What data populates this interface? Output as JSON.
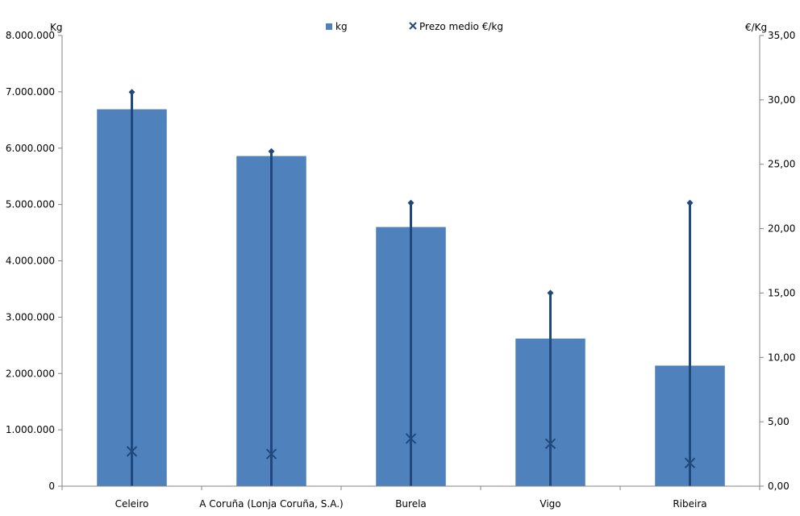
{
  "chart_data": {
    "type": "bar",
    "categories": [
      "Celeiro",
      "A Coruña (Lonja Coruña, S.A.)",
      "Burela",
      "Vigo",
      "Ribeira"
    ],
    "series": [
      {
        "name": "kg",
        "type": "bar",
        "axis": "left",
        "values": [
          6690000,
          5860000,
          4600000,
          2620000,
          2140000
        ]
      },
      {
        "name": "Prezo medio €/kg",
        "type": "marker",
        "axis": "right",
        "marker": "x",
        "values": [
          2.7,
          2.5,
          3.7,
          3.3,
          1.8
        ],
        "high": [
          30.6,
          26.0,
          22.0,
          15.0,
          22.0
        ],
        "low": [
          0,
          0,
          0,
          0,
          0
        ]
      }
    ],
    "y_left": {
      "label": "Kg",
      "lim": [
        0,
        8000000
      ],
      "ticks": [
        0,
        1000000,
        2000000,
        3000000,
        4000000,
        5000000,
        6000000,
        7000000,
        8000000
      ],
      "tick_labels": [
        "0",
        "1.000.000",
        "2.000.000",
        "3.000.000",
        "4.000.000",
        "5.000.000",
        "6.000.000",
        "7.000.000",
        "8.000.000"
      ]
    },
    "y_right": {
      "label": "€/Kg",
      "lim": [
        0,
        35
      ],
      "ticks": [
        0,
        5,
        10,
        15,
        20,
        25,
        30,
        35
      ],
      "tick_labels": [
        "0,00",
        "5,00",
        "10,00",
        "15,00",
        "20,00",
        "25,00",
        "30,00",
        "35,00"
      ]
    },
    "grid": false,
    "legend": "top-center",
    "colors": {
      "bar": "#4F81BD",
      "price": "#1F497D",
      "axis": "#868686"
    }
  }
}
